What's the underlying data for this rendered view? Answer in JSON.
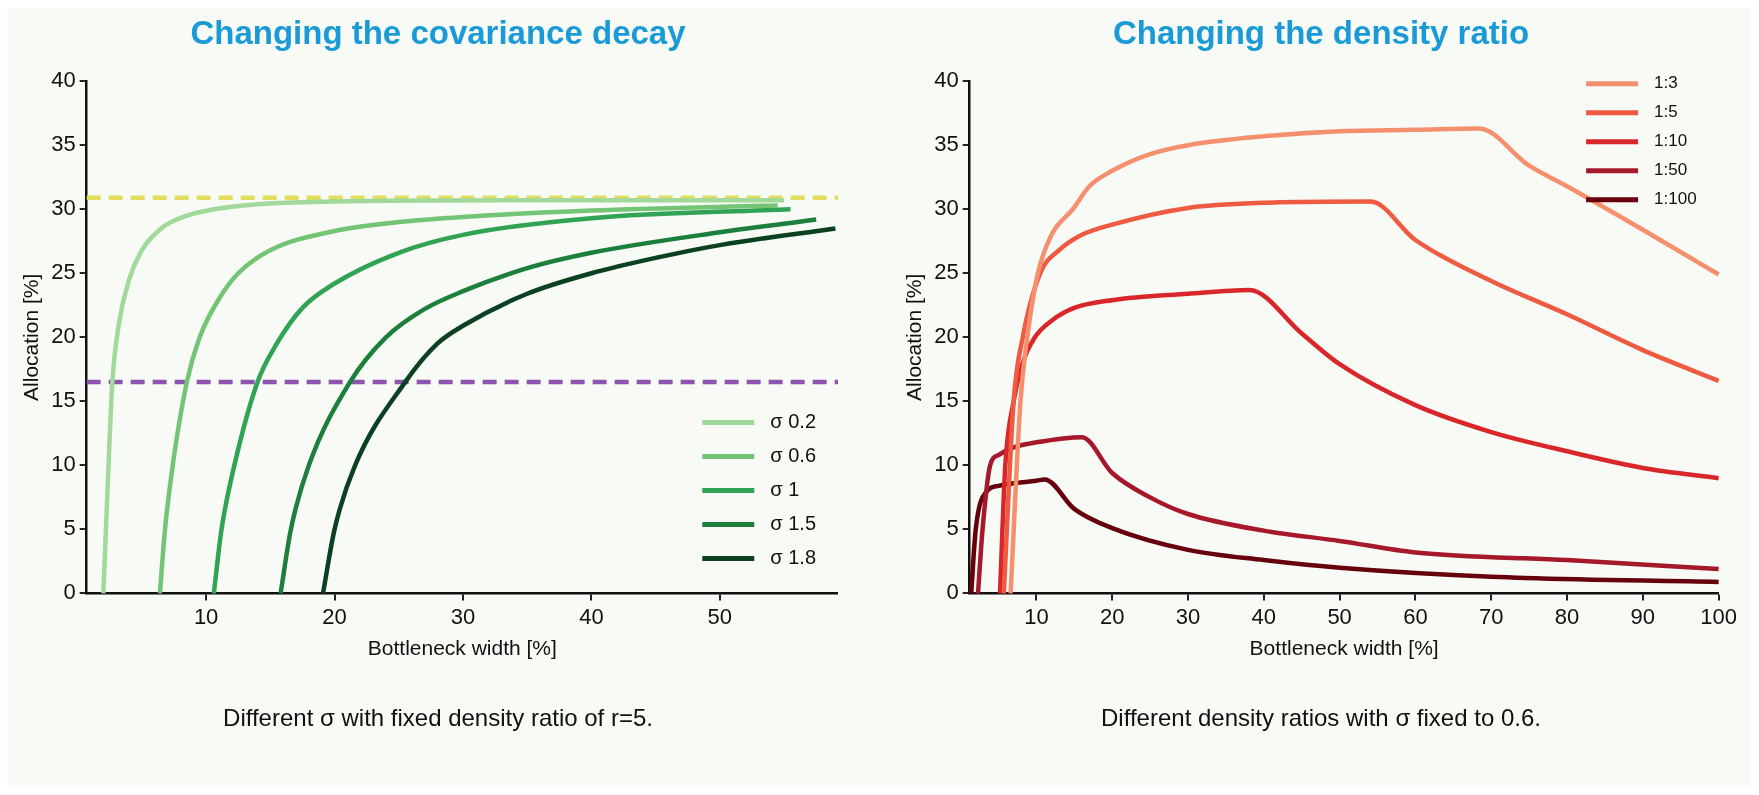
{
  "chart_data": [
    {
      "type": "line",
      "title": "Changing the covariance decay",
      "xlabel": "Bottleneck width [%]",
      "ylabel": "Allocation [%]",
      "annotations": [
        "Different σ with fixed density ratio of r=5."
      ],
      "xlim": [
        0.7,
        59.2
      ],
      "xticks": [
        10,
        20,
        30,
        40,
        50
      ],
      "ylim": [
        0,
        40
      ],
      "yticks": [
        0,
        5,
        10,
        15,
        20,
        25,
        30,
        35,
        40
      ],
      "legend": "bottom right",
      "line_style": "solid",
      "ref_lines": [
        {
          "axis": "y",
          "value": 30.9,
          "color": "#e2dd5c",
          "line_style": "dashed"
        },
        {
          "axis": "y",
          "value": 16.5,
          "color": "#8e55b0",
          "line_style": "dashed"
        }
      ],
      "series": [
        {
          "name": "σ 0.2",
          "color": "#a1d99b",
          "x": [
            2.0,
            2.2,
            2.4,
            2.7,
            3.2,
            4,
            5,
            6.5,
            8.5,
            12,
            20,
            35,
            55
          ],
          "values": [
            0,
            5,
            10,
            16.5,
            21,
            24.5,
            26.8,
            28.5,
            29.5,
            30.2,
            30.6,
            30.7,
            30.7
          ]
        },
        {
          "name": "σ 0.6",
          "color": "#74c476",
          "x": [
            6.4,
            6.8,
            7.4,
            8.5,
            9.5,
            11,
            12.5,
            15,
            20,
            25,
            30,
            40,
            54.5
          ],
          "values": [
            0,
            5,
            10,
            16.5,
            20,
            23,
            25,
            26.8,
            28.3,
            29,
            29.4,
            29.9,
            30.3
          ]
        },
        {
          "name": "σ 1",
          "color": "#31a354",
          "x": [
            10.6,
            11.2,
            12.2,
            14,
            15.5,
            17.5,
            20,
            25,
            30,
            40,
            55.5
          ],
          "values": [
            0,
            5,
            10,
            16.5,
            19.5,
            22.3,
            24.2,
            26.6,
            28,
            29.3,
            30
          ]
        },
        {
          "name": "σ 1.5",
          "color": "#1d7f3c",
          "x": [
            15.8,
            16.6,
            18,
            21.2,
            24,
            27,
            30,
            35,
            40,
            50,
            57.5
          ],
          "values": [
            0,
            5,
            10,
            16.5,
            20,
            22.2,
            23.6,
            25.4,
            26.6,
            28.2,
            29.2
          ]
        },
        {
          "name": "σ 1.8",
          "color": "#0b4020",
          "x": [
            19.1,
            20,
            21.6,
            25.5,
            28,
            30,
            35,
            40,
            45,
            50,
            59
          ],
          "values": [
            0,
            5,
            10,
            16.5,
            19.5,
            20.9,
            23.4,
            25,
            26.2,
            27.2,
            28.5
          ]
        }
      ]
    },
    {
      "type": "line",
      "title": "Changing the density ratio",
      "xlabel": "Bottleneck width [%]",
      "ylabel": "Allocation [%]",
      "annotations": [
        "Different density ratios with σ fixed to 0.6."
      ],
      "xlim": [
        1.2,
        100
      ],
      "xticks": [
        10,
        20,
        30,
        40,
        50,
        60,
        70,
        80,
        90,
        100
      ],
      "ylim": [
        0,
        40
      ],
      "yticks": [
        0,
        5,
        10,
        15,
        20,
        25,
        30,
        35,
        40
      ],
      "legend": "top right",
      "line_style": "solid",
      "series": [
        {
          "name": "1:3",
          "color": "#f4906e",
          "x": [
            6.6,
            7.9,
            8.8,
            10.2,
            12,
            14.8,
            17,
            20,
            25,
            30,
            40,
            50,
            60,
            68.4,
            75,
            80,
            90,
            100
          ],
          "values": [
            0,
            15,
            20,
            25,
            28,
            30,
            31.8,
            33,
            34.3,
            35,
            35.7,
            36.1,
            36.2,
            36.3,
            33.4,
            31.8,
            28.4,
            24.9
          ]
        },
        {
          "name": "1:5",
          "color": "#ee5a42",
          "x": [
            5.7,
            7,
            8.2,
            10.5,
            13,
            16,
            20,
            30,
            40,
            54.1,
            60,
            70,
            80,
            90,
            100
          ],
          "values": [
            0,
            15,
            20,
            25,
            26.8,
            28,
            28.8,
            30.1,
            30.5,
            30.6,
            27.6,
            24.4,
            21.8,
            19,
            16.6
          ]
        },
        {
          "name": "1:10",
          "color": "#d9262a",
          "x": [
            5.2,
            5.9,
            7,
            8.2,
            9.8,
            12,
            15,
            20,
            30,
            38.1,
            45,
            50,
            60,
            70,
            80,
            90,
            100
          ],
          "values": [
            0,
            10,
            15,
            18,
            20,
            21.3,
            22.3,
            22.9,
            23.4,
            23.7,
            20.3,
            17.9,
            14.7,
            12.6,
            11.1,
            9.8,
            9
          ]
        },
        {
          "name": "1:50",
          "color": "#a5192b",
          "x": [
            2.3,
            2.9,
            3.9,
            5,
            7,
            10,
            16,
            20,
            25,
            30,
            40,
            50,
            60,
            80,
            100
          ],
          "values": [
            0,
            5,
            10,
            10.8,
            11.4,
            11.8,
            12.2,
            9.4,
            7.5,
            6.2,
            4.9,
            4.1,
            3.2,
            2.6,
            1.9
          ]
        },
        {
          "name": "1:100",
          "color": "#67000d",
          "x": [
            1.4,
            2,
            3.5,
            5,
            7,
            10,
            11.1,
            15,
            20,
            30,
            40,
            50,
            70,
            100
          ],
          "values": [
            0,
            5,
            8,
            8.4,
            8.6,
            8.8,
            8.9,
            6.6,
            5.1,
            3.4,
            2.6,
            2,
            1.3,
            0.9
          ]
        }
      ]
    }
  ]
}
